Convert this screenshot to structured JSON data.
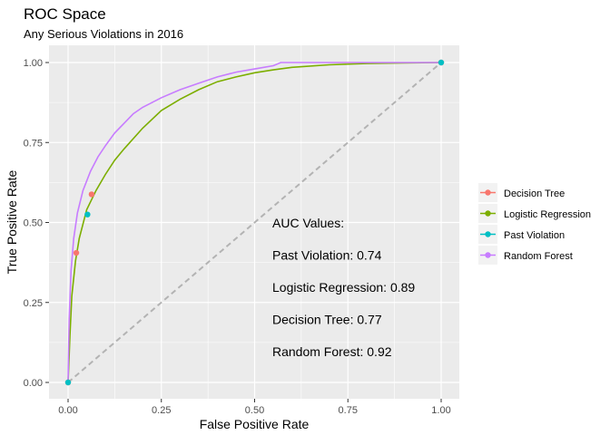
{
  "chart_data": {
    "type": "line",
    "title": "ROC Space",
    "subtitle": "Any Serious Violations in 2016",
    "xlabel": "False Positive Rate",
    "ylabel": "True Positive Rate",
    "xlim": [
      0,
      1
    ],
    "ylim": [
      0,
      1
    ],
    "x_ticks": [
      0,
      0.25,
      0.5,
      0.75,
      1
    ],
    "y_ticks": [
      0,
      0.25,
      0.5,
      0.75,
      1
    ],
    "x_tick_labels": [
      "0.00",
      "0.25",
      "0.50",
      "0.75",
      "1.00"
    ],
    "y_tick_labels": [
      "0.00",
      "0.25",
      "0.50",
      "0.75",
      "1.00"
    ],
    "grid": true,
    "legend_position": "right",
    "series": [
      {
        "name": "Decision Tree",
        "color": "#F8766D",
        "kind": "points",
        "points": [
          [
            0.0,
            0.0
          ],
          [
            0.022,
            0.405
          ],
          [
            0.063,
            0.588
          ],
          [
            1.0,
            1.0
          ]
        ]
      },
      {
        "name": "Logistic Regression",
        "color": "#7CAE00",
        "kind": "line",
        "points": [
          [
            0.0,
            0.0
          ],
          [
            0.005,
            0.15
          ],
          [
            0.01,
            0.27
          ],
          [
            0.02,
            0.38
          ],
          [
            0.03,
            0.45
          ],
          [
            0.05,
            0.54
          ],
          [
            0.075,
            0.6
          ],
          [
            0.1,
            0.65
          ],
          [
            0.125,
            0.695
          ],
          [
            0.15,
            0.73
          ],
          [
            0.2,
            0.795
          ],
          [
            0.25,
            0.85
          ],
          [
            0.3,
            0.885
          ],
          [
            0.35,
            0.915
          ],
          [
            0.4,
            0.94
          ],
          [
            0.45,
            0.955
          ],
          [
            0.5,
            0.968
          ],
          [
            0.55,
            0.977
          ],
          [
            0.6,
            0.985
          ],
          [
            0.7,
            0.993
          ],
          [
            0.8,
            0.997
          ],
          [
            0.9,
            0.999
          ],
          [
            1.0,
            1.0
          ]
        ]
      },
      {
        "name": "Past Violation",
        "color": "#00BFC4",
        "kind": "points",
        "points": [
          [
            0.0,
            0.0
          ],
          [
            0.052,
            0.525
          ],
          [
            1.0,
            1.0
          ]
        ]
      },
      {
        "name": "Random Forest",
        "color": "#C77CFF",
        "kind": "line",
        "points": [
          [
            0.0,
            0.0
          ],
          [
            0.003,
            0.2
          ],
          [
            0.008,
            0.35
          ],
          [
            0.015,
            0.45
          ],
          [
            0.025,
            0.53
          ],
          [
            0.04,
            0.6
          ],
          [
            0.06,
            0.66
          ],
          [
            0.08,
            0.705
          ],
          [
            0.1,
            0.74
          ],
          [
            0.125,
            0.78
          ],
          [
            0.15,
            0.81
          ],
          [
            0.175,
            0.84
          ],
          [
            0.2,
            0.86
          ],
          [
            0.25,
            0.89
          ],
          [
            0.3,
            0.915
          ],
          [
            0.35,
            0.935
          ],
          [
            0.4,
            0.955
          ],
          [
            0.45,
            0.97
          ],
          [
            0.5,
            0.98
          ],
          [
            0.55,
            0.99
          ],
          [
            0.57,
            1.0
          ],
          [
            0.7,
            1.0
          ],
          [
            1.0,
            1.0
          ]
        ]
      }
    ],
    "reference_line": {
      "points": [
        [
          0,
          0
        ],
        [
          1,
          1
        ]
      ],
      "color": "#b3b3b3",
      "style": "dashed"
    },
    "annotations": [
      "AUC Values:",
      "Past Violation: 0.74",
      "Logistic Regression: 0.89",
      "Decision Tree: 0.77",
      "Random Forest: 0.92"
    ],
    "panel_background": "#ebebeb",
    "grid_color": "#ffffff"
  }
}
